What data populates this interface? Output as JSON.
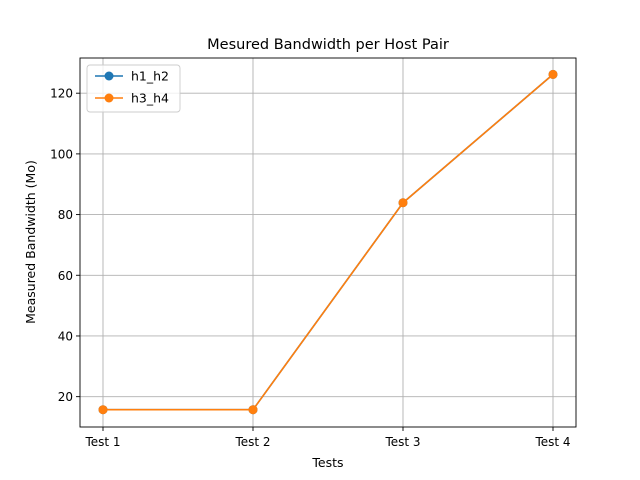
{
  "chart_data": {
    "type": "line",
    "title": "Mesured Bandwidth per Host Pair",
    "xlabel": "Tests",
    "ylabel": "Measured Bandwidth (Mo)",
    "categories": [
      "Test 1",
      "Test 2",
      "Test 3",
      "Test 4"
    ],
    "series": [
      {
        "name": "h1_h2",
        "color": "#1f77b4",
        "marker": "circle",
        "values": [
          15.7,
          15.7,
          83.9,
          126.2
        ]
      },
      {
        "name": "h3_h4",
        "color": "#ff7f0e",
        "marker": "circle",
        "values": [
          15.7,
          15.7,
          83.9,
          126.2
        ]
      }
    ],
    "ylim": [
      10,
      131.6
    ],
    "yticks": [
      20,
      40,
      60,
      80,
      100,
      120
    ],
    "grid": true,
    "legend_position": "top-left"
  }
}
